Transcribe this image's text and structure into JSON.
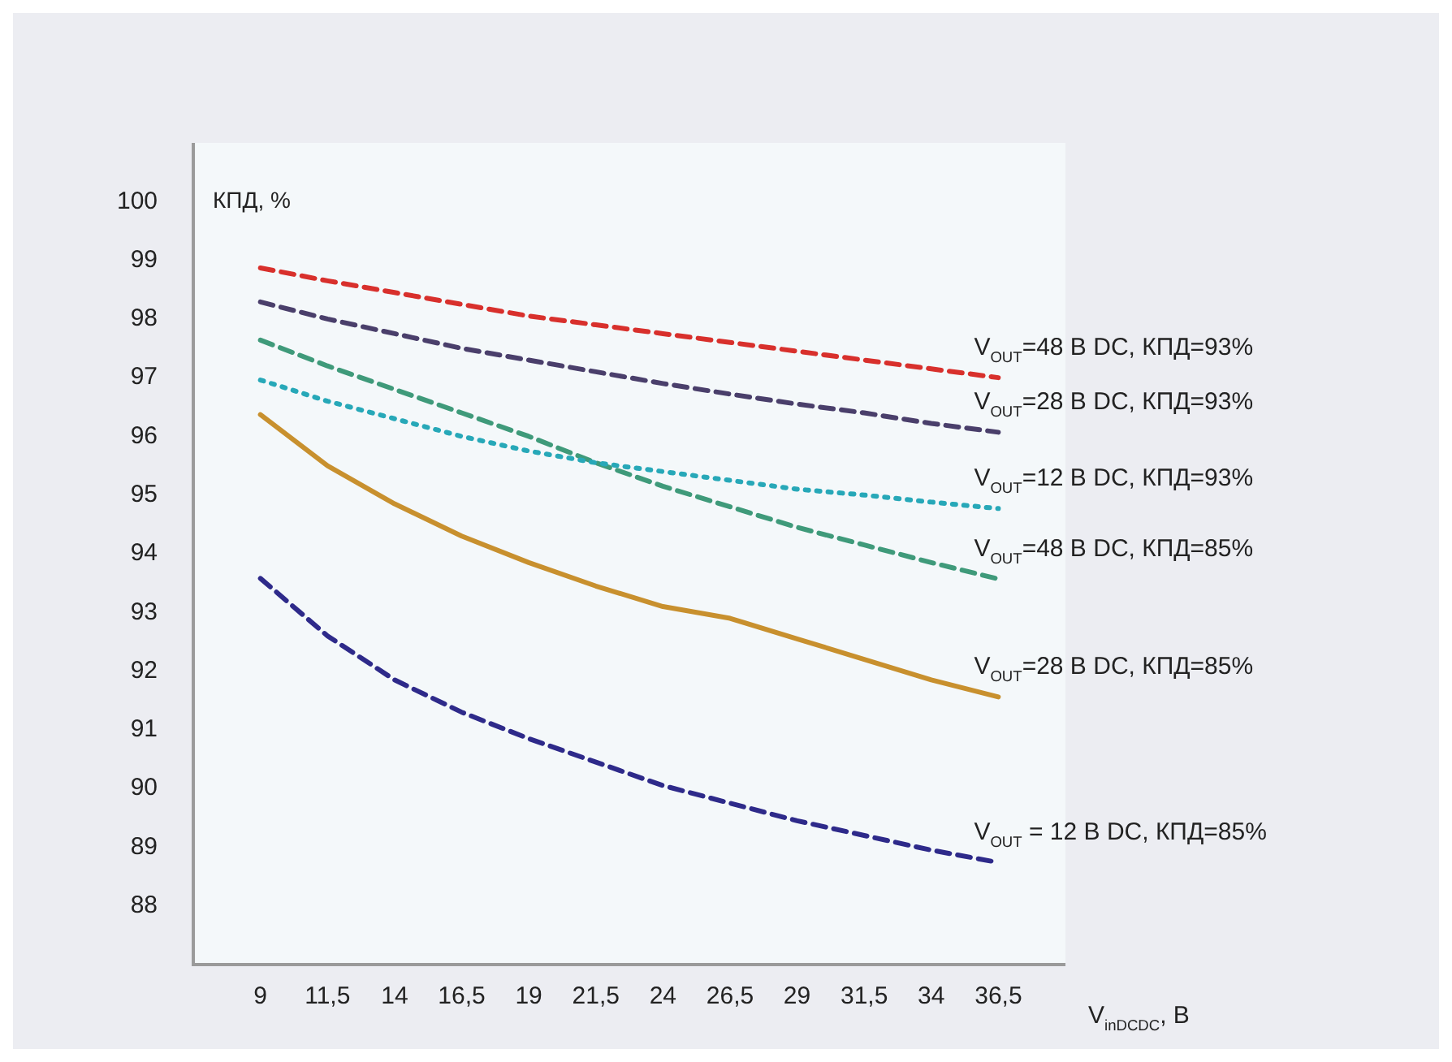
{
  "chart_data": {
    "type": "line",
    "xlabel": "V$_{inDCDC}$, В",
    "ylabel": "КПД, %",
    "x": [
      9,
      11.5,
      14,
      16.5,
      19,
      21.5,
      24,
      26.5,
      29,
      31.5,
      34,
      36.5
    ],
    "xlim": [
      6.5,
      39
    ],
    "xticks": [
      {
        "value": 9,
        "label": "9"
      },
      {
        "value": 11.5,
        "label": "11,5"
      },
      {
        "value": 14,
        "label": "14"
      },
      {
        "value": 16.5,
        "label": "16,5"
      },
      {
        "value": 19,
        "label": "19"
      },
      {
        "value": 21.5,
        "label": "21,5"
      },
      {
        "value": 24,
        "label": "24"
      },
      {
        "value": 26.5,
        "label": "26,5"
      },
      {
        "value": 29,
        "label": "29"
      },
      {
        "value": 31.5,
        "label": "31,5"
      },
      {
        "value": 34,
        "label": "34"
      },
      {
        "value": 36.5,
        "label": "36,5"
      }
    ],
    "ylim": [
      87,
      101
    ],
    "yticks": [
      88,
      89,
      90,
      91,
      92,
      93,
      94,
      95,
      96,
      97,
      98,
      99,
      100
    ],
    "grid": false,
    "legend": false,
    "marker": "none",
    "series": [
      {
        "name": "V$_{OUT}$=48 В DC, КПД=93%",
        "color": "#d8302c",
        "line_style": "dashed",
        "values": [
          98.87,
          98.65,
          98.45,
          98.25,
          98.05,
          97.9,
          97.75,
          97.6,
          97.45,
          97.3,
          97.15,
          97.0
        ]
      },
      {
        "name": "V$_{OUT}$=28 В DC, КПД=93%",
        "color": "#4a3f6b",
        "line_style": "dashed",
        "values": [
          98.29,
          98.0,
          97.75,
          97.5,
          97.3,
          97.1,
          96.9,
          96.72,
          96.55,
          96.4,
          96.22,
          96.07
        ]
      },
      {
        "name": "V$_{OUT}$=12 В DC, КПД=93%",
        "color": "#27a8b8",
        "line_style": "dotted",
        "values": [
          96.96,
          96.6,
          96.3,
          96.0,
          95.75,
          95.55,
          95.4,
          95.25,
          95.1,
          95.0,
          94.88,
          94.77
        ]
      },
      {
        "name": "V$_{OUT}$=48 В DC, КПД=85%",
        "color": "#3f9a7a",
        "line_style": "dashed",
        "values": [
          97.64,
          97.2,
          96.8,
          96.4,
          96.0,
          95.55,
          95.15,
          94.8,
          94.45,
          94.15,
          93.85,
          93.57
        ]
      },
      {
        "name": "V$_{OUT}$=28 В DC, КПД=85%",
        "color": "#c8902e",
        "line_style": "solid",
        "values": [
          96.37,
          95.5,
          94.85,
          94.3,
          93.85,
          93.45,
          93.1,
          92.9,
          92.55,
          92.2,
          91.85,
          91.56
        ]
      },
      {
        "name": "V$_{OUT}$ = 12 В DC, КПД=85%",
        "color": "#2e2a8a",
        "line_style": "dashed",
        "values": [
          93.58,
          92.6,
          91.85,
          91.3,
          90.85,
          90.45,
          90.05,
          89.75,
          89.45,
          89.2,
          88.95,
          88.74
        ]
      }
    ]
  }
}
